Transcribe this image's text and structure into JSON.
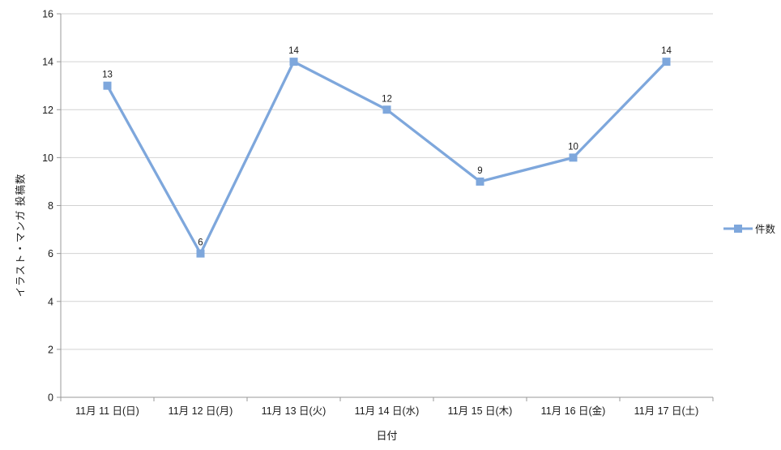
{
  "chart_data": {
    "type": "line",
    "title": "",
    "xlabel": "日付",
    "ylabel": "イラスト・マンガ 投稿数",
    "categories": [
      "11月 11 日(日)",
      "11月 12 日(月)",
      "11月 13 日(火)",
      "11月 14 日(水)",
      "11月 15 日(木)",
      "11月 16 日(金)",
      "11月 17 日(土)"
    ],
    "series": [
      {
        "name": "件数",
        "values": [
          13,
          6,
          14,
          12,
          9,
          10,
          14
        ]
      }
    ],
    "ylim": [
      0,
      16
    ],
    "ytick_step": 2,
    "yticks": [
      0,
      2,
      4,
      6,
      8,
      10,
      12,
      14,
      16
    ],
    "grid": true,
    "legend_position": "right",
    "data_labels": true,
    "marker": "square",
    "colors": {
      "series": "#7EA7DC",
      "gridline": "#D2D2D2",
      "axis": "#999999",
      "text": "#1A1A1A"
    }
  }
}
